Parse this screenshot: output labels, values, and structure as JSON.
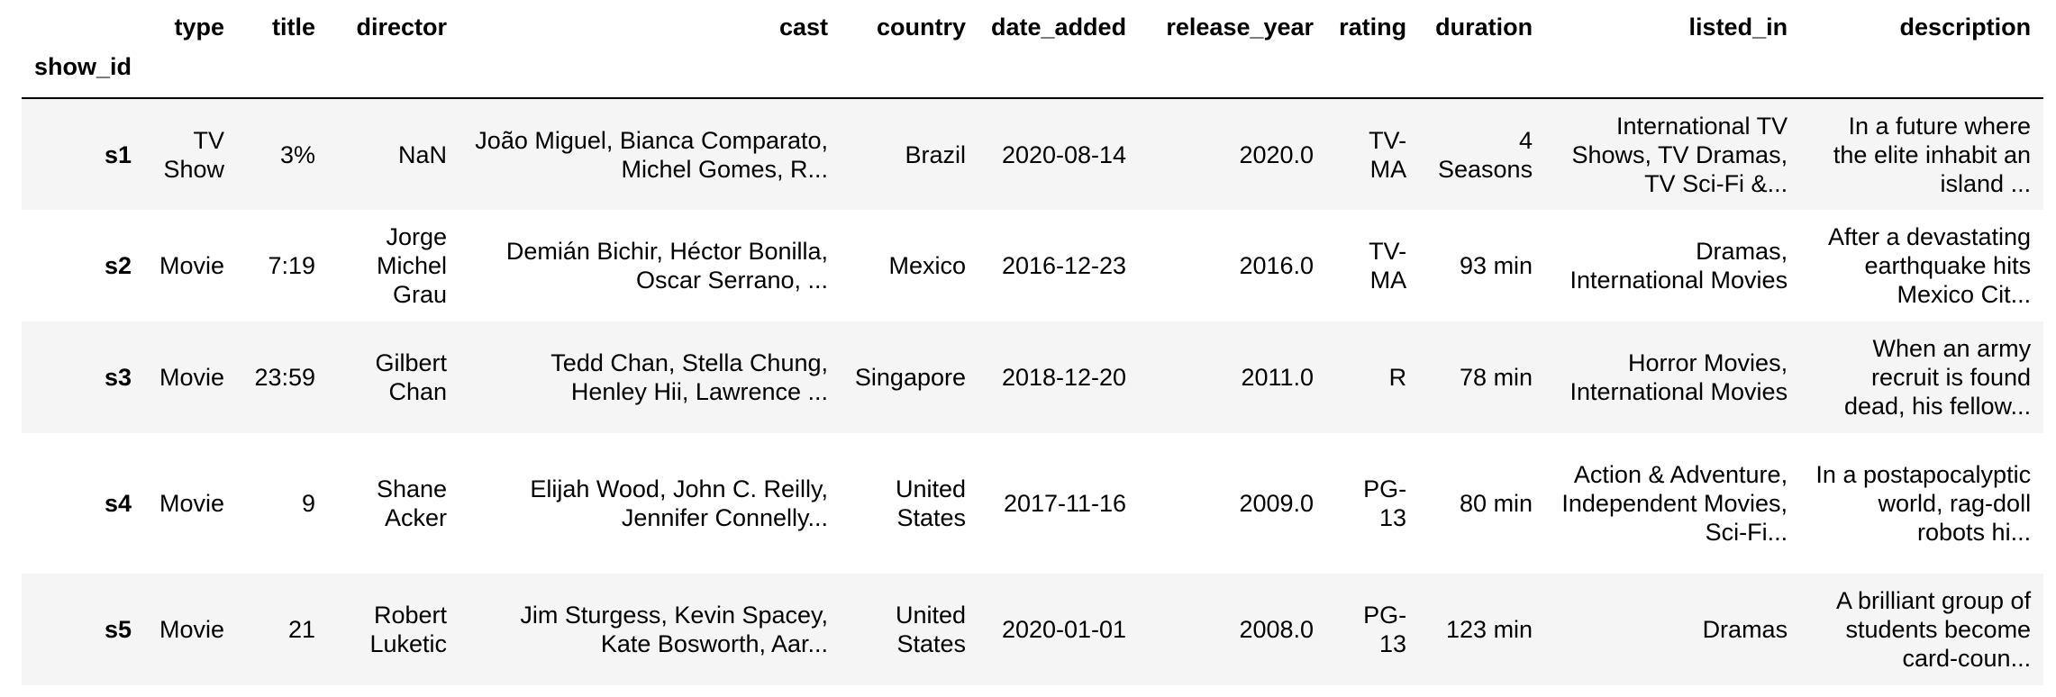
{
  "table": {
    "index_name": "show_id",
    "columns": [
      "type",
      "title",
      "director",
      "cast",
      "country",
      "date_added",
      "release_year",
      "rating",
      "duration",
      "listed_in",
      "description"
    ],
    "rows": [
      {
        "show_id": "s1",
        "cells": [
          "TV Show",
          "3%",
          "NaN",
          "João Miguel, Bianca Comparato, Michel Gomes, R...",
          "Brazil",
          "2020-08-14",
          "2020.0",
          "TV-MA",
          "4 Seasons",
          "International TV Shows, TV Dramas, TV Sci-Fi &...",
          "In a future where the elite inhabit an island ..."
        ]
      },
      {
        "show_id": "s2",
        "cells": [
          "Movie",
          "7:19",
          "Jorge Michel Grau",
          "Demián Bichir, Héctor Bonilla, Oscar Serrano, ...",
          "Mexico",
          "2016-12-23",
          "2016.0",
          "TV-MA",
          "93 min",
          "Dramas, International Movies",
          "After a devastating earthquake hits Mexico Cit..."
        ]
      },
      {
        "show_id": "s3",
        "cells": [
          "Movie",
          "23:59",
          "Gilbert Chan",
          "Tedd Chan, Stella Chung, Henley Hii, Lawrence ...",
          "Singapore",
          "2018-12-20",
          "2011.0",
          "R",
          "78 min",
          "Horror Movies, International Movies",
          "When an army recruit is found dead, his fellow..."
        ]
      },
      {
        "show_id": "s4",
        "cells": [
          "Movie",
          "9",
          "Shane Acker",
          "Elijah Wood, John C. Reilly, Jennifer Connelly...",
          "United States",
          "2017-11-16",
          "2009.0",
          "PG-13",
          "80 min",
          "Action & Adventure, Independent Movies, Sci-Fi...",
          "In a postapocalyptic world, rag-doll robots hi..."
        ]
      },
      {
        "show_id": "s5",
        "cells": [
          "Movie",
          "21",
          "Robert Luketic",
          "Jim Sturgess, Kevin Spacey, Kate Bosworth, Aar...",
          "United States",
          "2020-01-01",
          "2008.0",
          "PG-13",
          "123 min",
          "Dramas",
          "A brilliant group of students become card-coun..."
        ]
      }
    ]
  }
}
